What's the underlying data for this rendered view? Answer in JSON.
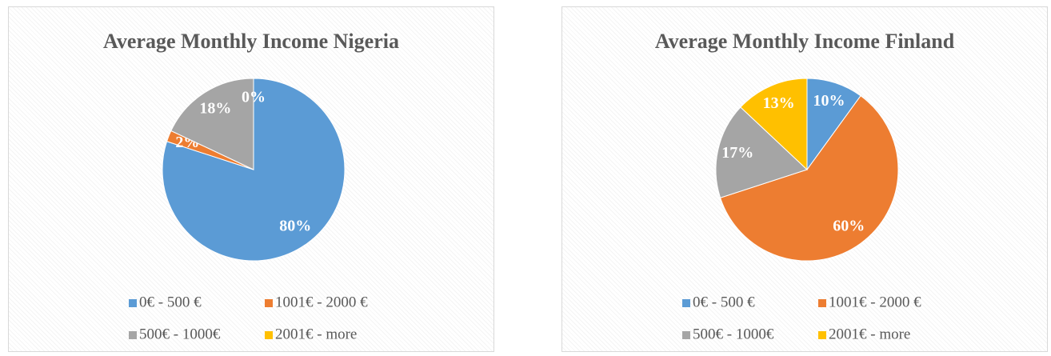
{
  "chart_data": [
    {
      "type": "pie",
      "title": "Average Monthly Income Nigeria",
      "categories": [
        "0€ - 500 €",
        "1001€ - 2000 €",
        "500€ - 1000€",
        "2001€ - more"
      ],
      "values": [
        80,
        2,
        18,
        0
      ],
      "value_labels": [
        "80%",
        "2%",
        "18%",
        "0%"
      ],
      "colors": [
        "#5b9bd5",
        "#ed7d31",
        "#a5a5a5",
        "#ffc000"
      ],
      "legend": "bottom"
    },
    {
      "type": "pie",
      "title": "Average Monthly Income Finland",
      "categories": [
        "0€ - 500 €",
        "1001€ - 2000 €",
        "500€ - 1000€",
        "2001€ - more"
      ],
      "values": [
        10,
        60,
        17,
        13
      ],
      "value_labels": [
        "10%",
        "60%",
        "17%",
        "13%"
      ],
      "colors": [
        "#5b9bd5",
        "#ed7d31",
        "#a5a5a5",
        "#ffc000"
      ],
      "legend": "bottom"
    }
  ]
}
